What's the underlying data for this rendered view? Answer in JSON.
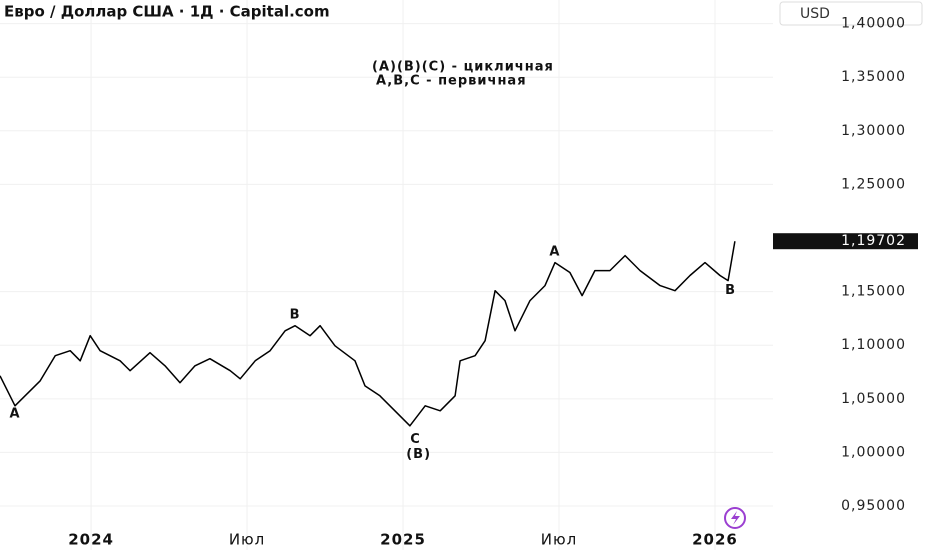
{
  "chart_data": {
    "type": "line",
    "title": "Евро / Доллар США · 1Д · Capital.com",
    "currency": "USD",
    "legend_notes": [
      "(A)(B)(C) - цикличная",
      "A,B,C - первичная"
    ],
    "color": "#000000",
    "grid": true,
    "x": [
      2023.708,
      2023.756,
      2023.837,
      2023.885,
      2023.933,
      2023.965,
      2023.997,
      2024.029,
      2024.093,
      2024.125,
      2024.189,
      2024.237,
      2024.285,
      2024.333,
      2024.381,
      2024.446,
      2024.478,
      2024.526,
      2024.574,
      2024.622,
      2024.654,
      2024.702,
      2024.734,
      2024.782,
      2024.846,
      2024.878,
      2024.926,
      2024.974,
      2025.022,
      2025.071,
      2025.119,
      2025.167,
      2025.183,
      2025.231,
      2025.263,
      2025.295,
      2025.327,
      2025.359,
      2025.407,
      2025.455,
      2025.487,
      2025.535,
      2025.574,
      2025.615,
      2025.663,
      2025.712,
      2025.76,
      2025.824,
      2025.872,
      2025.92,
      2025.968,
      2026.016,
      2026.042,
      2026.064
    ],
    "values": [
      1.0715,
      1.0435,
      1.0668,
      1.0902,
      1.0949,
      1.0855,
      1.1089,
      1.0949,
      1.0855,
      1.0762,
      1.093,
      1.0808,
      1.065,
      1.0808,
      1.0874,
      1.0762,
      1.0687,
      1.0855,
      1.0949,
      1.1135,
      1.1182,
      1.1089,
      1.1182,
      1.0995,
      1.0855,
      1.0621,
      1.0528,
      1.0388,
      1.0248,
      1.0435,
      1.0388,
      1.0528,
      1.0855,
      1.0902,
      1.1042,
      1.1509,
      1.1416,
      1.1135,
      1.1416,
      1.1556,
      1.1771,
      1.1678,
      1.1463,
      1.1696,
      1.1696,
      1.1836,
      1.1696,
      1.1556,
      1.1509,
      1.165,
      1.1771,
      1.165,
      1.1603,
      1.19702
    ],
    "last_value_label": "1,19702",
    "xlim": [
      2023.708,
      2026.186
    ],
    "xticks": [
      2024,
      {
        "value": 2024.5,
        "label": "Июл"
      },
      2025,
      {
        "value": 2025.5,
        "label": "Июл"
      },
      2026
    ],
    "ylim": [
      0.909,
      1.422
    ],
    "yticks": [
      {
        "value": 1.4,
        "label": "1,40000"
      },
      {
        "value": 1.35,
        "label": "1,35000"
      },
      {
        "value": 1.3,
        "label": "1,30000"
      },
      {
        "value": 1.25,
        "label": "1,25000"
      },
      {
        "value": 1.15,
        "label": "1,15000"
      },
      {
        "value": 1.1,
        "label": "1,10000"
      },
      {
        "value": 1.05,
        "label": "1,05000"
      },
      {
        "value": 1,
        "label": "1,00000"
      },
      {
        "value": 0.95,
        "label": "0,95000"
      }
    ],
    "annotations": [
      {
        "text": "A",
        "x": 2023.756,
        "y": 1.036
      },
      {
        "text": "B",
        "x": 2024.654,
        "y": 1.128
      },
      {
        "text": "C",
        "x": 2025.04,
        "y": 1.012
      },
      {
        "text": "(B)",
        "x": 2025.05,
        "y": 0.998
      },
      {
        "text": "A",
        "x": 2025.487,
        "y": 1.187
      },
      {
        "text": "B",
        "x": 2026.05,
        "y": 1.151
      }
    ]
  }
}
